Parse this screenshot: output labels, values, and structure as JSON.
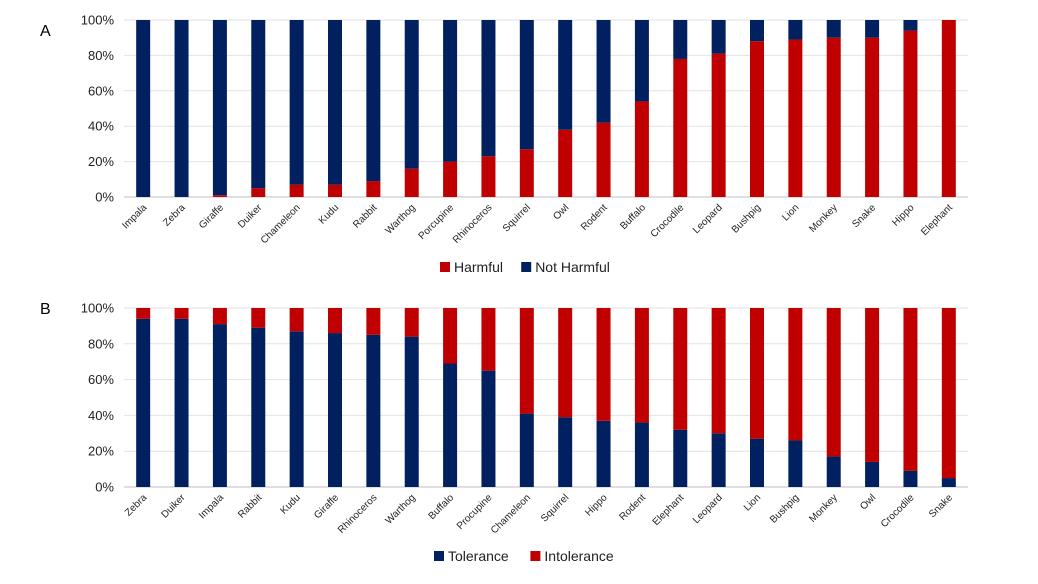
{
  "chart_data": [
    {
      "panel_label": "A",
      "type": "bar",
      "stacked": true,
      "ylim": [
        0,
        100
      ],
      "yticks": [
        "0%",
        "20%",
        "40%",
        "60%",
        "80%",
        "100%"
      ],
      "categories": [
        "Impala",
        "Zebra",
        "Giraffe",
        "Duiker",
        "Chameleon",
        "Kudu",
        "Rabbit",
        "Warthog",
        "Porcupine",
        "Rhinoceros",
        "Squirrel",
        "Owl",
        "Rodent",
        "Buffalo",
        "Crocodile",
        "Leopard",
        "Bushpig",
        "Lion",
        "Monkey",
        "Snake",
        "Hippo",
        "Elephant"
      ],
      "series": [
        {
          "name": "Harmful",
          "color": "#c00000",
          "values": [
            0,
            0,
            1,
            5,
            7,
            7,
            9,
            16,
            20,
            23,
            27,
            38,
            42,
            54,
            78,
            81,
            88,
            89,
            90,
            90,
            94,
            100
          ]
        },
        {
          "name": "Not Harmful",
          "color": "#002060",
          "values": [
            100,
            100,
            99,
            95,
            93,
            93,
            91,
            84,
            80,
            77,
            73,
            62,
            58,
            46,
            22,
            19,
            12,
            11,
            10,
            10,
            6,
            0
          ]
        }
      ],
      "legend": {
        "position": "bottom",
        "order": [
          "Harmful",
          "Not Harmful"
        ]
      }
    },
    {
      "panel_label": "B",
      "type": "bar",
      "stacked": true,
      "ylim": [
        0,
        100
      ],
      "yticks": [
        "0%",
        "20%",
        "40%",
        "60%",
        "80%",
        "100%"
      ],
      "categories": [
        "Zebra",
        "Duiker",
        "Impala",
        "Rabbit",
        "Kudu",
        "Giraffe",
        "Rhinoceros",
        "Warthog",
        "Buffalo",
        "Procupine",
        "Chameleon",
        "Squirrel",
        "Hippo",
        "Rodent",
        "Elephant",
        "Leopard",
        "Lion",
        "Bushpig",
        "Monkey",
        "Owl",
        "Crocodile",
        "Snake"
      ],
      "series": [
        {
          "name": "Tolerance",
          "color": "#002060",
          "values": [
            94,
            94,
            91,
            89,
            87,
            86,
            85,
            84,
            69,
            65,
            41,
            39,
            37,
            36,
            32,
            30,
            27,
            26,
            17,
            14,
            9,
            5
          ]
        },
        {
          "name": "Intolerance",
          "color": "#c00000",
          "values": [
            6,
            6,
            9,
            11,
            13,
            14,
            15,
            16,
            31,
            35,
            59,
            61,
            63,
            64,
            68,
            70,
            73,
            74,
            83,
            86,
            91,
            95
          ]
        }
      ],
      "legend": {
        "position": "bottom",
        "order": [
          "Tolerance",
          "Intolerance"
        ]
      }
    }
  ]
}
